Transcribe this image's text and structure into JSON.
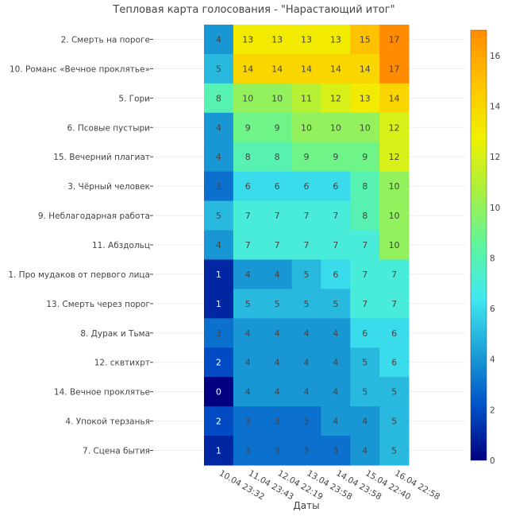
{
  "chart_data": {
    "type": "heatmap",
    "title": "Тепловая карта голосования - \"Нарастающий итог\"",
    "xlabel": "Даты",
    "ylabel": "",
    "x_categories": [
      "10.04 23:32",
      "11.04 23:43",
      "12.04 22:19",
      "13.04 23:58",
      "14.04 23:58",
      "15.04 22:40",
      "16.04 22:58"
    ],
    "y_categories": [
      "2. Смерть на пороге",
      "10. Романс «Вечное проклятье»",
      "5. Гори",
      "6. Псовые пустыри",
      "15. Вечерний плагиат",
      "3. Чёрный человек",
      "9. Неблагодарная работа",
      "11. Абздольц",
      "1. Про мудаков от первого лица",
      "13. Смерть через порог",
      "8. Дурак и Тьма",
      "12. сквтихрт",
      "14. Вечное проклятье",
      "4. Упокой терзанья",
      "7. Сцена бытия"
    ],
    "values": [
      [
        4,
        13,
        13,
        13,
        13,
        15,
        17
      ],
      [
        5,
        14,
        14,
        14,
        14,
        14,
        17
      ],
      [
        8,
        10,
        10,
        11,
        12,
        13,
        14
      ],
      [
        4,
        9,
        9,
        10,
        10,
        10,
        12
      ],
      [
        4,
        8,
        8,
        9,
        9,
        9,
        12
      ],
      [
        3,
        6,
        6,
        6,
        6,
        8,
        10
      ],
      [
        5,
        7,
        7,
        7,
        7,
        8,
        10
      ],
      [
        4,
        7,
        7,
        7,
        7,
        7,
        10
      ],
      [
        1,
        4,
        4,
        5,
        6,
        7,
        7
      ],
      [
        1,
        5,
        5,
        5,
        5,
        7,
        7
      ],
      [
        3,
        4,
        4,
        4,
        4,
        6,
        6
      ],
      [
        2,
        4,
        4,
        4,
        4,
        5,
        6
      ],
      [
        0,
        4,
        4,
        4,
        4,
        5,
        5
      ],
      [
        2,
        3,
        3,
        3,
        4,
        4,
        5
      ],
      [
        1,
        3,
        3,
        3,
        3,
        4,
        5
      ]
    ],
    "zmin": 0,
    "zmax": 17,
    "colorscale": [
      "#000080",
      "#0050c8",
      "#1c9fd6",
      "#40e8f0",
      "#5ef59e",
      "#a8f040",
      "#f0f000",
      "#ffc400",
      "#ff8c00"
    ],
    "colorbar_ticks": [
      0,
      2,
      4,
      6,
      8,
      10,
      12,
      14,
      16
    ]
  }
}
